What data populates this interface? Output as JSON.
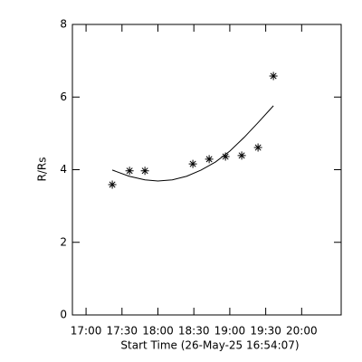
{
  "chart_data": {
    "type": "scatter",
    "xlabel": "Start Time (26-May-25 16:54:07)",
    "ylabel": "R/Rs",
    "xlim": [
      16.81,
      20.55
    ],
    "ylim": [
      0,
      8
    ],
    "xticks": [
      {
        "value": 17,
        "label": "17:00"
      },
      {
        "value": 17.5,
        "label": "17:30"
      },
      {
        "value": 18,
        "label": "18:00"
      },
      {
        "value": 18.5,
        "label": "18:30"
      },
      {
        "value": 19,
        "label": "19:00"
      },
      {
        "value": 19.5,
        "label": "19:30"
      },
      {
        "value": 20,
        "label": "20:00"
      }
    ],
    "yticks": [
      0,
      2,
      4,
      6,
      8
    ],
    "series": [
      {
        "type": "scatter",
        "color": "#000000",
        "x": [
          17.365,
          17.605,
          17.819,
          18.486,
          18.713,
          18.94,
          19.166,
          19.393,
          19.607
        ],
        "values": [
          3.59,
          3.97,
          3.97,
          4.16,
          4.29,
          4.36,
          4.39,
          4.61,
          6.58
        ]
      },
      {
        "type": "line",
        "color": "#000000",
        "x": [
          17.365,
          17.6,
          17.82,
          18.0,
          18.2,
          18.4,
          18.6,
          18.8,
          19.0,
          19.2,
          19.4,
          19.607
        ],
        "values": [
          3.99,
          3.82,
          3.72,
          3.69,
          3.72,
          3.82,
          3.99,
          4.21,
          4.51,
          4.89,
          5.31,
          5.76
        ]
      }
    ]
  }
}
